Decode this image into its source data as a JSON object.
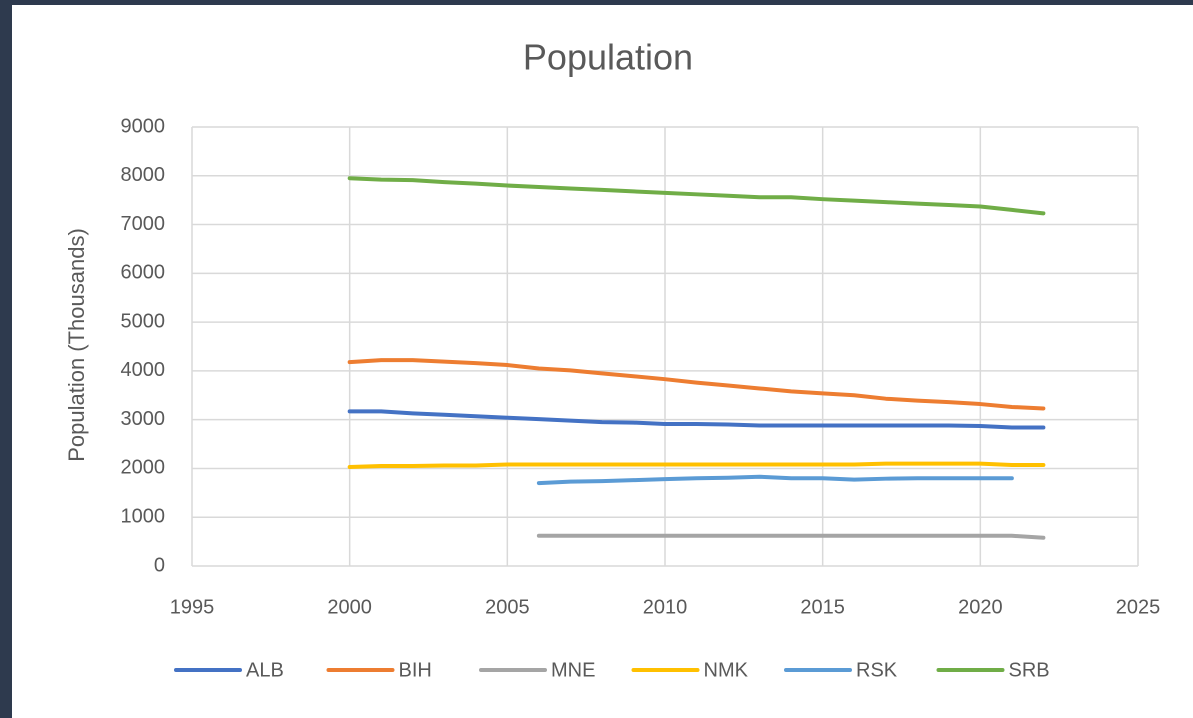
{
  "chart_data": {
    "type": "line",
    "title": "Population",
    "y_label": "Population (Thousands)",
    "x": [
      2000,
      2001,
      2002,
      2003,
      2004,
      2005,
      2006,
      2007,
      2008,
      2009,
      2010,
      2011,
      2012,
      2013,
      2014,
      2015,
      2016,
      2017,
      2018,
      2019,
      2020,
      2021,
      2022
    ],
    "series": [
      {
        "name": "ALB",
        "color": "#4472c4",
        "values": [
          3170,
          3170,
          3130,
          3100,
          3070,
          3040,
          3010,
          2980,
          2950,
          2940,
          2910,
          2910,
          2900,
          2880,
          2880,
          2880,
          2880,
          2880,
          2880,
          2880,
          2870,
          2840,
          2840
        ]
      },
      {
        "name": "BIH",
        "color": "#ed7d31",
        "values": [
          4180,
          4220,
          4220,
          4190,
          4160,
          4120,
          4050,
          4010,
          3950,
          3890,
          3830,
          3760,
          3700,
          3640,
          3580,
          3540,
          3500,
          3430,
          3390,
          3360,
          3320,
          3260,
          3230
        ]
      },
      {
        "name": "MNE",
        "color": "#a5a5a5",
        "values": [
          null,
          null,
          null,
          null,
          null,
          null,
          620,
          620,
          620,
          620,
          620,
          620,
          620,
          620,
          620,
          620,
          620,
          620,
          620,
          620,
          620,
          620,
          580
        ]
      },
      {
        "name": "NMK",
        "color": "#ffc000",
        "values": [
          2030,
          2050,
          2050,
          2060,
          2060,
          2080,
          2080,
          2080,
          2080,
          2080,
          2080,
          2080,
          2080,
          2080,
          2080,
          2080,
          2080,
          2100,
          2100,
          2100,
          2100,
          2070,
          2070
        ]
      },
      {
        "name": "RSK",
        "color": "#5b9bd5",
        "values": [
          null,
          null,
          null,
          null,
          null,
          null,
          1700,
          1730,
          1740,
          1760,
          1780,
          1800,
          1810,
          1830,
          1800,
          1800,
          1770,
          1790,
          1800,
          1800,
          1800,
          1800,
          null
        ]
      },
      {
        "name": "SRB",
        "color": "#70ad47",
        "values": [
          7950,
          7920,
          7910,
          7870,
          7840,
          7800,
          7770,
          7740,
          7710,
          7680,
          7650,
          7620,
          7590,
          7560,
          7560,
          7520,
          7490,
          7460,
          7430,
          7400,
          7370,
          7300,
          7230
        ]
      }
    ],
    "xlim": [
      1995,
      2025
    ],
    "xticks": [
      1995,
      2000,
      2005,
      2010,
      2015,
      2020,
      2025
    ],
    "ylim": [
      0,
      9000
    ],
    "yticks": [
      0,
      1000,
      2000,
      3000,
      4000,
      5000,
      6000,
      7000,
      8000,
      9000
    ],
    "grid": true,
    "legend": "bottom"
  }
}
